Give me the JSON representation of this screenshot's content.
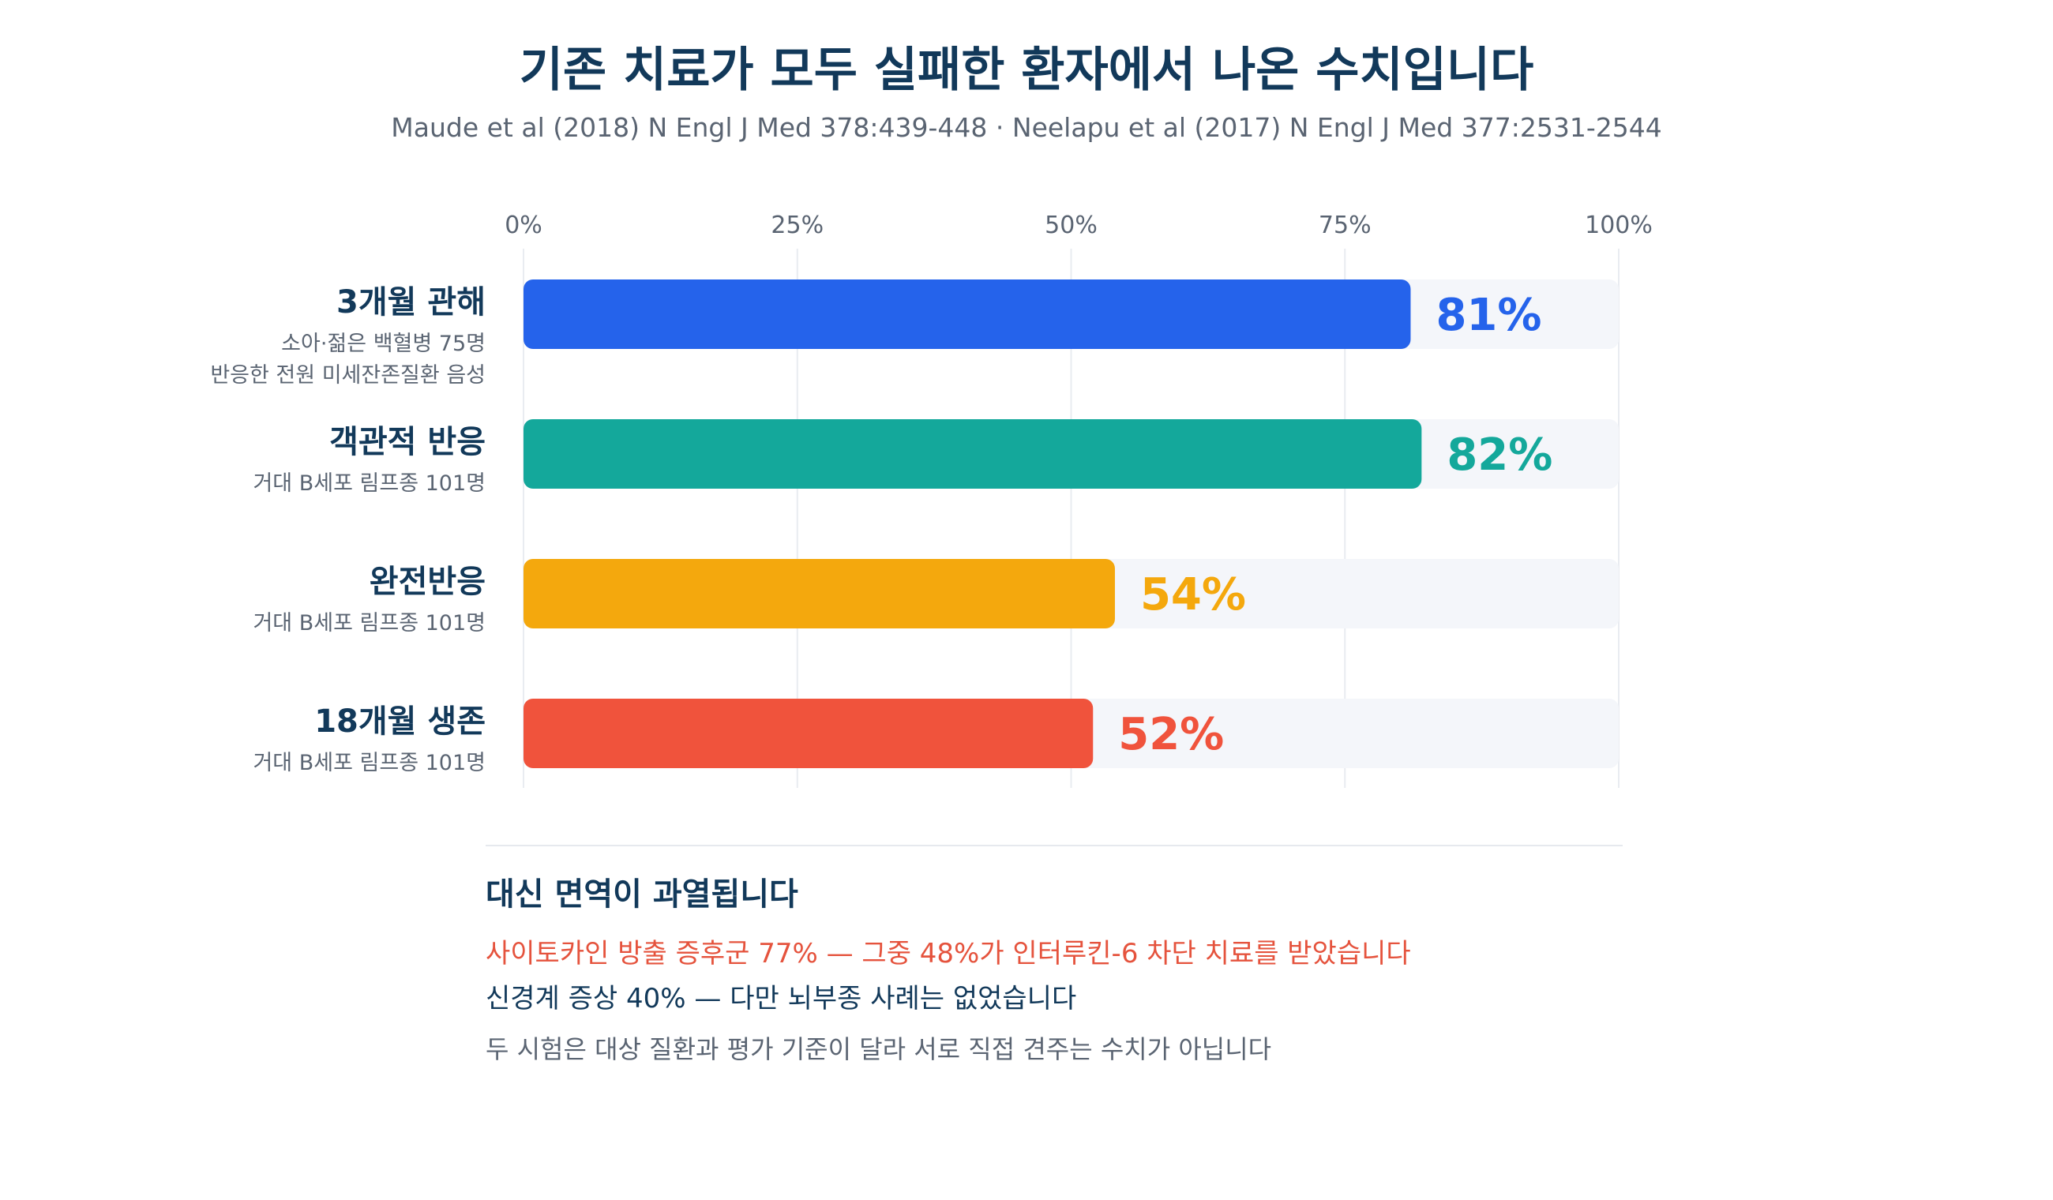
{
  "title": "기존 치료가 모두 실패한 환자에서 나온 수치입니다",
  "subtitle": "Maude et al (2018) N Engl J Med 378:439-448 · Neelapu et al (2017) N Engl J Med 377:2531-2544",
  "chart_data": {
    "type": "bar",
    "orientation": "horizontal",
    "categories": [
      "3개월 관해",
      "객관적 반응",
      "완전반응",
      "18개월 생존"
    ],
    "category_notes": [
      [
        "소아·젊은 백혈병 75명",
        "반응한 전원 미세잔존질환 음성"
      ],
      [
        "거대 B세포 림프종 101명"
      ],
      [
        "거대 B세포 림프종 101명"
      ],
      [
        "거대 B세포 림프종 101명"
      ]
    ],
    "values": [
      81,
      82,
      54,
      52
    ],
    "value_labels": [
      "81%",
      "82%",
      "54%",
      "52%"
    ],
    "colors": [
      "#2563eb",
      "#14a89b",
      "#f4a80d",
      "#f0533c"
    ],
    "xlim": [
      0,
      100
    ],
    "xticks": [
      "0%",
      "25%",
      "50%",
      "75%",
      "100%"
    ],
    "grid": true,
    "track_color": "#f4f6fa"
  },
  "notes": {
    "heading": "대신 면역이 과열됩니다",
    "line1": "사이토카인 방출 증후군 77% — 그중 48%가 인터루킨-6 차단 치료를 받았습니다",
    "line2": "신경계 증상 40% — 다만 뇌부종 사례는 없었습니다",
    "line3": "두 시험은 대상 질환과 평가 기준이 달라 서로 직접 견주는 수치가 아닙니다"
  }
}
